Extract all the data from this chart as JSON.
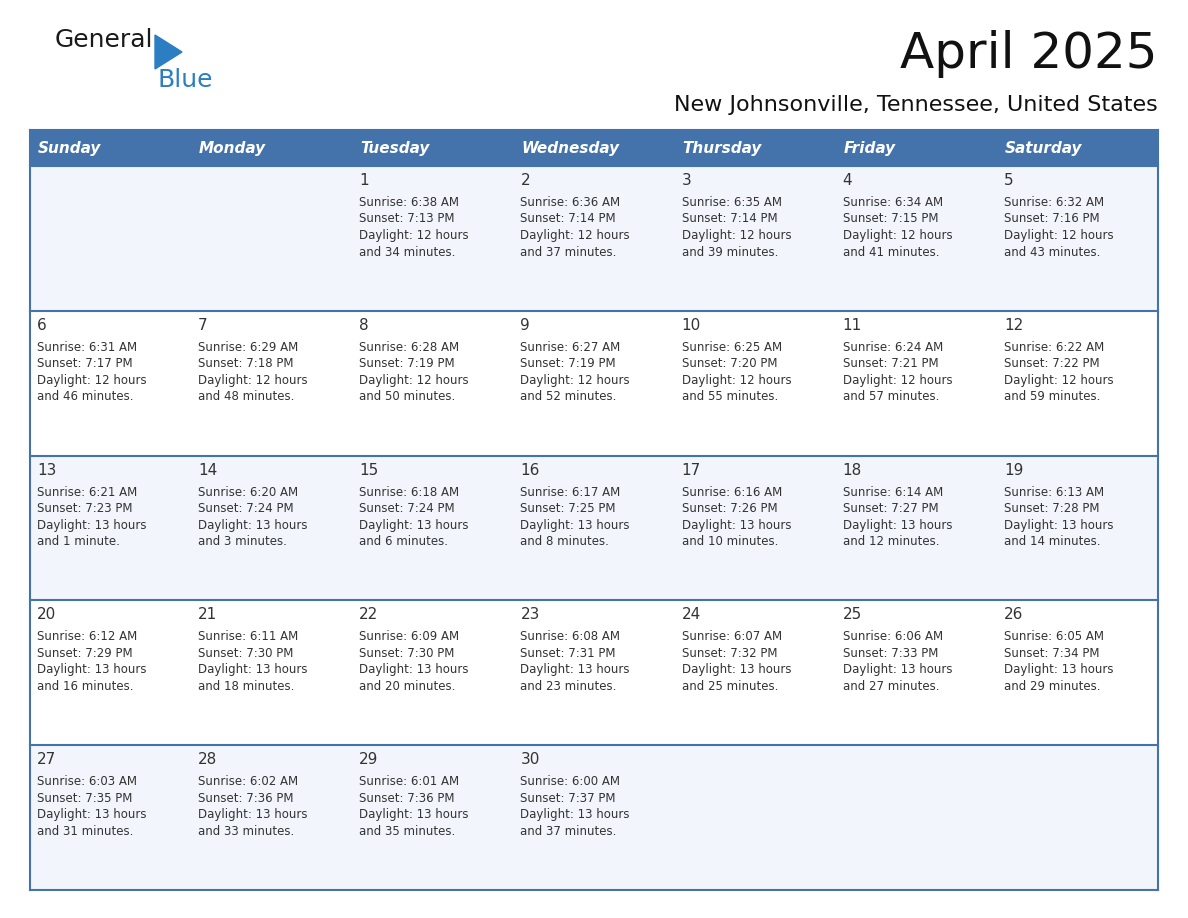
{
  "title": "April 2025",
  "subtitle": "New Johnsonville, Tennessee, United States",
  "header_bg_color": "#4472aa",
  "header_text_color": "#ffffff",
  "row_bg_odd": "#f2f5fb",
  "row_bg_even": "#ffffff",
  "grid_color": "#4472aa",
  "text_color": "#333333",
  "days_of_week": [
    "Sunday",
    "Monday",
    "Tuesday",
    "Wednesday",
    "Thursday",
    "Friday",
    "Saturday"
  ],
  "calendar_data": [
    [
      {
        "day": "",
        "sunrise": "",
        "sunset": "",
        "daylight": ""
      },
      {
        "day": "",
        "sunrise": "",
        "sunset": "",
        "daylight": ""
      },
      {
        "day": "1",
        "sunrise": "Sunrise: 6:38 AM",
        "sunset": "Sunset: 7:13 PM",
        "daylight": "Daylight: 12 hours\nand 34 minutes."
      },
      {
        "day": "2",
        "sunrise": "Sunrise: 6:36 AM",
        "sunset": "Sunset: 7:14 PM",
        "daylight": "Daylight: 12 hours\nand 37 minutes."
      },
      {
        "day": "3",
        "sunrise": "Sunrise: 6:35 AM",
        "sunset": "Sunset: 7:14 PM",
        "daylight": "Daylight: 12 hours\nand 39 minutes."
      },
      {
        "day": "4",
        "sunrise": "Sunrise: 6:34 AM",
        "sunset": "Sunset: 7:15 PM",
        "daylight": "Daylight: 12 hours\nand 41 minutes."
      },
      {
        "day": "5",
        "sunrise": "Sunrise: 6:32 AM",
        "sunset": "Sunset: 7:16 PM",
        "daylight": "Daylight: 12 hours\nand 43 minutes."
      }
    ],
    [
      {
        "day": "6",
        "sunrise": "Sunrise: 6:31 AM",
        "sunset": "Sunset: 7:17 PM",
        "daylight": "Daylight: 12 hours\nand 46 minutes."
      },
      {
        "day": "7",
        "sunrise": "Sunrise: 6:29 AM",
        "sunset": "Sunset: 7:18 PM",
        "daylight": "Daylight: 12 hours\nand 48 minutes."
      },
      {
        "day": "8",
        "sunrise": "Sunrise: 6:28 AM",
        "sunset": "Sunset: 7:19 PM",
        "daylight": "Daylight: 12 hours\nand 50 minutes."
      },
      {
        "day": "9",
        "sunrise": "Sunrise: 6:27 AM",
        "sunset": "Sunset: 7:19 PM",
        "daylight": "Daylight: 12 hours\nand 52 minutes."
      },
      {
        "day": "10",
        "sunrise": "Sunrise: 6:25 AM",
        "sunset": "Sunset: 7:20 PM",
        "daylight": "Daylight: 12 hours\nand 55 minutes."
      },
      {
        "day": "11",
        "sunrise": "Sunrise: 6:24 AM",
        "sunset": "Sunset: 7:21 PM",
        "daylight": "Daylight: 12 hours\nand 57 minutes."
      },
      {
        "day": "12",
        "sunrise": "Sunrise: 6:22 AM",
        "sunset": "Sunset: 7:22 PM",
        "daylight": "Daylight: 12 hours\nand 59 minutes."
      }
    ],
    [
      {
        "day": "13",
        "sunrise": "Sunrise: 6:21 AM",
        "sunset": "Sunset: 7:23 PM",
        "daylight": "Daylight: 13 hours\nand 1 minute."
      },
      {
        "day": "14",
        "sunrise": "Sunrise: 6:20 AM",
        "sunset": "Sunset: 7:24 PM",
        "daylight": "Daylight: 13 hours\nand 3 minutes."
      },
      {
        "day": "15",
        "sunrise": "Sunrise: 6:18 AM",
        "sunset": "Sunset: 7:24 PM",
        "daylight": "Daylight: 13 hours\nand 6 minutes."
      },
      {
        "day": "16",
        "sunrise": "Sunrise: 6:17 AM",
        "sunset": "Sunset: 7:25 PM",
        "daylight": "Daylight: 13 hours\nand 8 minutes."
      },
      {
        "day": "17",
        "sunrise": "Sunrise: 6:16 AM",
        "sunset": "Sunset: 7:26 PM",
        "daylight": "Daylight: 13 hours\nand 10 minutes."
      },
      {
        "day": "18",
        "sunrise": "Sunrise: 6:14 AM",
        "sunset": "Sunset: 7:27 PM",
        "daylight": "Daylight: 13 hours\nand 12 minutes."
      },
      {
        "day": "19",
        "sunrise": "Sunrise: 6:13 AM",
        "sunset": "Sunset: 7:28 PM",
        "daylight": "Daylight: 13 hours\nand 14 minutes."
      }
    ],
    [
      {
        "day": "20",
        "sunrise": "Sunrise: 6:12 AM",
        "sunset": "Sunset: 7:29 PM",
        "daylight": "Daylight: 13 hours\nand 16 minutes."
      },
      {
        "day": "21",
        "sunrise": "Sunrise: 6:11 AM",
        "sunset": "Sunset: 7:30 PM",
        "daylight": "Daylight: 13 hours\nand 18 minutes."
      },
      {
        "day": "22",
        "sunrise": "Sunrise: 6:09 AM",
        "sunset": "Sunset: 7:30 PM",
        "daylight": "Daylight: 13 hours\nand 20 minutes."
      },
      {
        "day": "23",
        "sunrise": "Sunrise: 6:08 AM",
        "sunset": "Sunset: 7:31 PM",
        "daylight": "Daylight: 13 hours\nand 23 minutes."
      },
      {
        "day": "24",
        "sunrise": "Sunrise: 6:07 AM",
        "sunset": "Sunset: 7:32 PM",
        "daylight": "Daylight: 13 hours\nand 25 minutes."
      },
      {
        "day": "25",
        "sunrise": "Sunrise: 6:06 AM",
        "sunset": "Sunset: 7:33 PM",
        "daylight": "Daylight: 13 hours\nand 27 minutes."
      },
      {
        "day": "26",
        "sunrise": "Sunrise: 6:05 AM",
        "sunset": "Sunset: 7:34 PM",
        "daylight": "Daylight: 13 hours\nand 29 minutes."
      }
    ],
    [
      {
        "day": "27",
        "sunrise": "Sunrise: 6:03 AM",
        "sunset": "Sunset: 7:35 PM",
        "daylight": "Daylight: 13 hours\nand 31 minutes."
      },
      {
        "day": "28",
        "sunrise": "Sunrise: 6:02 AM",
        "sunset": "Sunset: 7:36 PM",
        "daylight": "Daylight: 13 hours\nand 33 minutes."
      },
      {
        "day": "29",
        "sunrise": "Sunrise: 6:01 AM",
        "sunset": "Sunset: 7:36 PM",
        "daylight": "Daylight: 13 hours\nand 35 minutes."
      },
      {
        "day": "30",
        "sunrise": "Sunrise: 6:00 AM",
        "sunset": "Sunset: 7:37 PM",
        "daylight": "Daylight: 13 hours\nand 37 minutes."
      },
      {
        "day": "",
        "sunrise": "",
        "sunset": "",
        "daylight": ""
      },
      {
        "day": "",
        "sunrise": "",
        "sunset": "",
        "daylight": ""
      },
      {
        "day": "",
        "sunrise": "",
        "sunset": "",
        "daylight": ""
      }
    ]
  ],
  "logo_color_general": "#1a1a1a",
  "logo_color_blue": "#2b7ec1",
  "fig_width": 11.88,
  "fig_height": 9.18,
  "dpi": 100
}
